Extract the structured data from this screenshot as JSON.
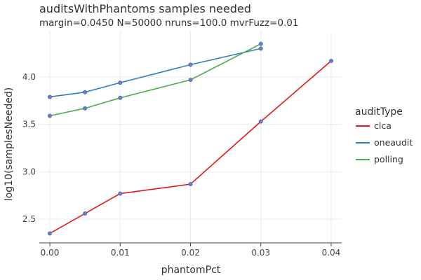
{
  "chart_data": {
    "type": "line",
    "title": "auditsWithPhantoms samples needed",
    "subtitle": "margin=0.0450 N=50000 nruns=100.0 mvrFuzz=0.01",
    "xlabel": "phantomPct",
    "ylabel": "log10(samplesNeeded)",
    "xlim": [
      -0.0015,
      0.0415
    ],
    "ylim": [
      2.25,
      4.48
    ],
    "x_ticks": [
      0,
      0.01,
      0.02,
      0.03,
      0.04
    ],
    "x_tick_labels": [
      "0.00",
      "0.01",
      "0.02",
      "0.03",
      "0.04"
    ],
    "y_ticks": [
      2.5,
      3.0,
      3.5,
      4.0
    ],
    "y_tick_labels": [
      "2.5",
      "3.0",
      "3.5",
      "4.0"
    ],
    "grid": true,
    "legend": {
      "title": "auditType",
      "placement": "right"
    },
    "series": [
      {
        "name": "clca",
        "color": "#e41a1c",
        "x": [
          0,
          0.005,
          0.01,
          0.02,
          0.03,
          0.04
        ],
        "y": [
          2.35,
          2.56,
          2.77,
          2.87,
          3.53,
          4.17
        ]
      },
      {
        "name": "oneaudit",
        "color": "#377eb8",
        "x": [
          0,
          0.005,
          0.01,
          0.02,
          0.03
        ],
        "y": [
          3.79,
          3.84,
          3.94,
          4.13,
          4.3
        ]
      },
      {
        "name": "polling",
        "color": "#4daf4a",
        "x": [
          0,
          0.005,
          0.01,
          0.02,
          0.03
        ],
        "y": [
          3.59,
          3.67,
          3.78,
          3.97,
          4.35
        ]
      }
    ],
    "marker_color": "#6a7fc9",
    "marker_edge_color": "#5566aa"
  }
}
